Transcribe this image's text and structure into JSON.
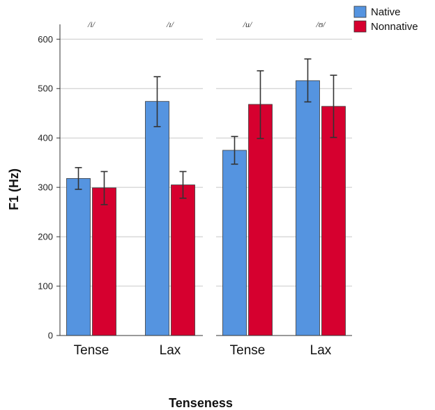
{
  "chart_data": {
    "type": "bar",
    "xlabel": "Tenseness",
    "ylabel": "F1 (Hz)",
    "ylim": [
      0,
      630
    ],
    "yticks": [
      0,
      100,
      200,
      300,
      400,
      500,
      600
    ],
    "grid": true,
    "legend_position": "top-right",
    "colors": {
      "Native": "#5594e0",
      "Nonnative": "#d6002f"
    },
    "series_names": [
      "Native",
      "Nonnative"
    ],
    "panels": [
      {
        "categories": [
          "Tense",
          "Lax"
        ],
        "category_labels": [
          "/i/",
          "/ɪ/"
        ],
        "series": [
          {
            "name": "Native",
            "values": [
              318,
              474
            ],
            "error_low": [
              296,
              423
            ],
            "error_high": [
              340,
              524
            ]
          },
          {
            "name": "Nonnative",
            "values": [
              299,
              305
            ],
            "error_low": [
              265,
              278
            ],
            "error_high": [
              332,
              332
            ]
          }
        ]
      },
      {
        "categories": [
          "Tense",
          "Lax"
        ],
        "category_labels": [
          "/u/",
          "/ʊ/"
        ],
        "series": [
          {
            "name": "Native",
            "values": [
              375,
              516
            ],
            "error_low": [
              347,
              473
            ],
            "error_high": [
              403,
              560
            ]
          },
          {
            "name": "Nonnative",
            "values": [
              468,
              464
            ],
            "error_low": [
              399,
              401
            ],
            "error_high": [
              536,
              527
            ]
          }
        ]
      }
    ]
  }
}
